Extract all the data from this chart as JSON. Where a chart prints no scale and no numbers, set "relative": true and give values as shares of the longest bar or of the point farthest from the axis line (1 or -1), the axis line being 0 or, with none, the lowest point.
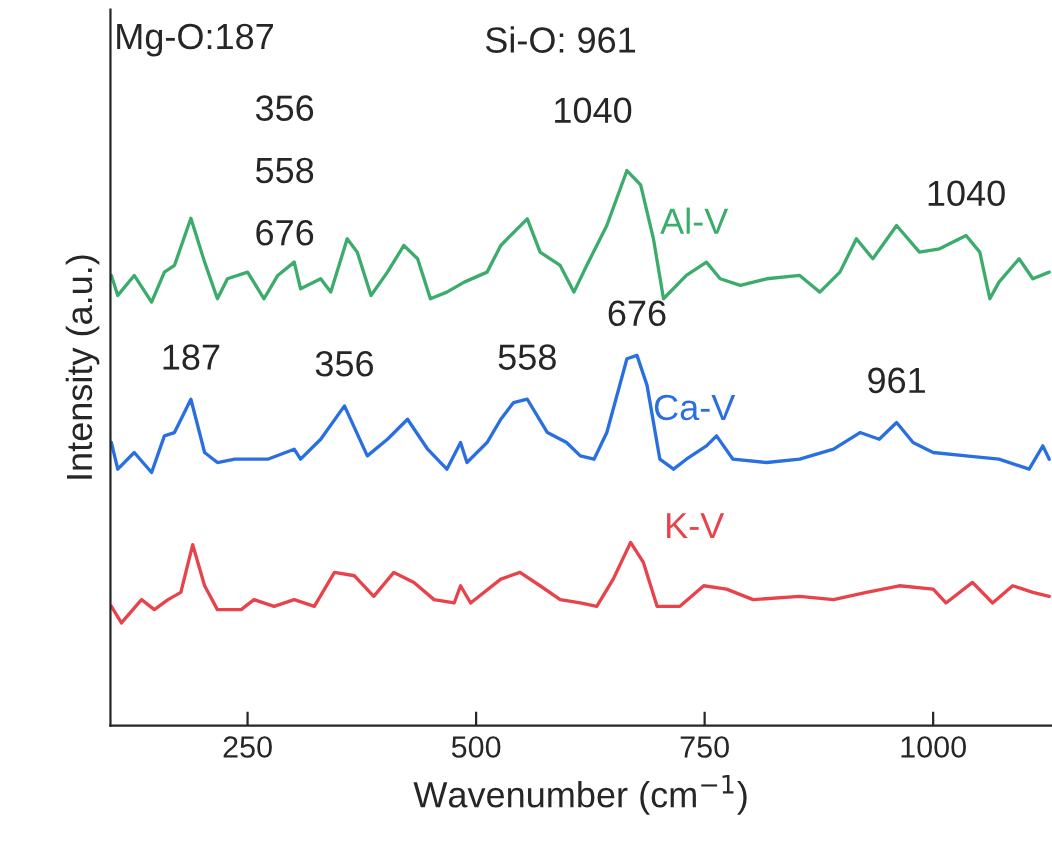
{
  "chart_data": {
    "type": "line",
    "relative": true,
    "xlabel": "Wavenumber (cm$^{−1}$)",
    "ylabel": "Intensity (a.u.)",
    "xlim": [
      100,
      1130
    ],
    "xticks": [
      250,
      500,
      750,
      1000
    ],
    "grid": false,
    "legend": false,
    "marker": "none",
    "line_style": "solid",
    "series": [
      {
        "name": "Al-V",
        "color": "#3cac6c",
        "x": [
          101,
          108,
          126,
          145,
          159,
          170,
          188,
          203,
          217,
          228,
          250,
          268,
          283,
          301,
          308,
          330,
          341,
          359,
          370,
          385,
          403,
          421,
          436,
          450,
          468,
          487,
          512,
          527,
          556,
          570,
          592,
          607,
          621,
          643,
          665,
          680,
          694,
          705,
          730,
          752,
          767,
          789,
          818,
          854,
          876,
          898,
          916,
          934,
          960,
          985,
          1007,
          1036,
          1051,
          1062,
          1072,
          1094,
          1109,
          1127
        ],
        "values": [
          0.811,
          0.775,
          0.811,
          0.763,
          0.817,
          0.829,
          0.914,
          0.835,
          0.769,
          0.805,
          0.817,
          0.769,
          0.811,
          0.835,
          0.787,
          0.805,
          0.781,
          0.877,
          0.853,
          0.775,
          0.817,
          0.865,
          0.841,
          0.769,
          0.781,
          0.799,
          0.817,
          0.865,
          0.913,
          0.853,
          0.829,
          0.781,
          0.829,
          0.901,
          1.0,
          0.974,
          0.877,
          0.769,
          0.811,
          0.835,
          0.805,
          0.793,
          0.805,
          0.811,
          0.781,
          0.817,
          0.877,
          0.841,
          0.901,
          0.853,
          0.859,
          0.883,
          0.853,
          0.769,
          0.799,
          0.841,
          0.805,
          0.817
        ]
      },
      {
        "name": "Ca-V",
        "color": "#2a6fe0",
        "x": [
          101,
          108,
          126,
          145,
          159,
          170,
          188,
          203,
          217,
          236,
          272,
          301,
          308,
          330,
          356,
          381,
          403,
          425,
          447,
          468,
          483,
          490,
          512,
          527,
          541,
          556,
          578,
          599,
          614,
          629,
          643,
          665,
          676,
          687,
          701,
          716,
          730,
          752,
          763,
          781,
          818,
          854,
          891,
          920,
          941,
          960,
          978,
          1000,
          1036,
          1072,
          1105,
          1120,
          1127
        ],
        "values": [
          0.51,
          0.462,
          0.492,
          0.456,
          0.522,
          0.528,
          0.588,
          0.492,
          0.474,
          0.48,
          0.48,
          0.498,
          0.48,
          0.516,
          0.576,
          0.486,
          0.516,
          0.552,
          0.498,
          0.462,
          0.51,
          0.474,
          0.51,
          0.552,
          0.582,
          0.588,
          0.528,
          0.51,
          0.486,
          0.48,
          0.528,
          0.661,
          0.667,
          0.613,
          0.48,
          0.462,
          0.48,
          0.504,
          0.522,
          0.48,
          0.474,
          0.48,
          0.498,
          0.528,
          0.516,
          0.546,
          0.51,
          0.492,
          0.486,
          0.48,
          0.462,
          0.504,
          0.48
        ]
      },
      {
        "name": "K-V",
        "color": "#e8434a",
        "x": [
          101,
          112,
          134,
          148,
          163,
          177,
          190,
          203,
          217,
          243,
          257,
          279,
          301,
          323,
          345,
          367,
          388,
          410,
          432,
          454,
          476,
          483,
          494,
          527,
          548,
          570,
          592,
          614,
          632,
          650,
          669,
          683,
          698,
          723,
          749,
          774,
          803,
          854,
          891,
          927,
          963,
          1000,
          1014,
          1043,
          1065,
          1087,
          1109,
          1127
        ],
        "values": [
          0.215,
          0.185,
          0.227,
          0.209,
          0.227,
          0.24,
          0.326,
          0.252,
          0.209,
          0.209,
          0.227,
          0.215,
          0.227,
          0.215,
          0.276,
          0.27,
          0.233,
          0.276,
          0.258,
          0.227,
          0.221,
          0.252,
          0.221,
          0.264,
          0.276,
          0.252,
          0.227,
          0.221,
          0.215,
          0.264,
          0.33,
          0.294,
          0.215,
          0.215,
          0.252,
          0.246,
          0.227,
          0.233,
          0.227,
          0.24,
          0.252,
          0.246,
          0.221,
          0.258,
          0.221,
          0.252,
          0.24,
          0.233
        ]
      }
    ],
    "annotations": [
      "Mg-O:187",
      "356",
      "558",
      "676",
      "Si-O: 961",
      "1040",
      {
        "text": "187",
        "x": 188,
        "y": 0.588
      },
      {
        "text": "356",
        "x": 356,
        "y": 0.576
      },
      {
        "text": "558",
        "x": 556,
        "y": 0.588
      },
      {
        "text": "676",
        "x": 676,
        "y": 0.667
      },
      {
        "text": "961",
        "x": 960,
        "y": 0.546
      },
      {
        "text": "1040",
        "x": 1036,
        "y": 0.883
      }
    ]
  }
}
